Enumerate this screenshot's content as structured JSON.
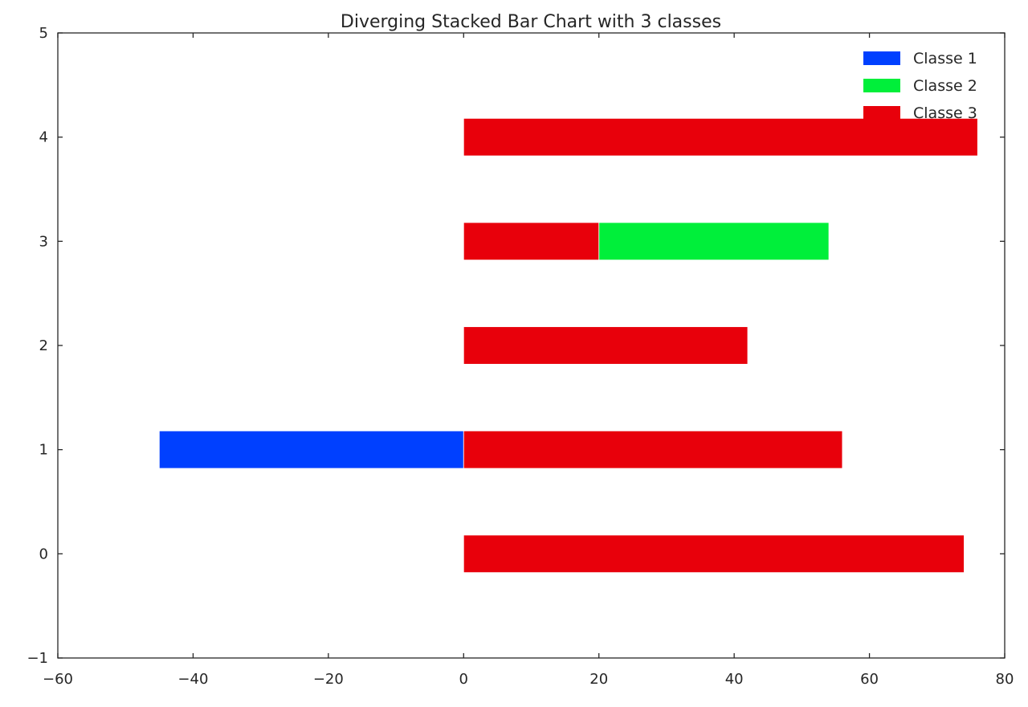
{
  "chart_data": {
    "type": "bar",
    "orientation": "horizontal",
    "stacked": true,
    "diverging": true,
    "title": "Diverging Stacked Bar Chart with 3 classes",
    "xlabel": "",
    "ylabel": "",
    "xlim": [
      -60,
      80
    ],
    "ylim": [
      -1,
      5
    ],
    "xticks": [
      -60,
      -40,
      -20,
      0,
      20,
      40,
      60,
      80
    ],
    "yticks": [
      -1,
      0,
      1,
      2,
      3,
      4,
      5
    ],
    "xtick_labels": [
      "−60",
      "−40",
      "−20",
      "0",
      "20",
      "40",
      "60",
      "80"
    ],
    "ytick_labels": [
      "−1",
      "0",
      "1",
      "2",
      "3",
      "4",
      "5"
    ],
    "categories": [
      0,
      1,
      2,
      3,
      4
    ],
    "bar_height": 0.36,
    "grid": false,
    "legend_position": "top-right",
    "series": [
      {
        "name": "Classe 1",
        "color": "#0040ff",
        "values": [
          0,
          -45,
          0,
          0,
          0
        ]
      },
      {
        "name": "Classe 2",
        "color": "#00ef3a",
        "values": [
          0,
          0,
          0,
          34,
          0
        ],
        "offsets": [
          0,
          0,
          0,
          20,
          0
        ]
      },
      {
        "name": "Classe 3",
        "color": "#e8000b",
        "values": [
          74,
          56,
          42,
          20,
          76
        ],
        "offsets": [
          0,
          0,
          0,
          0,
          0
        ]
      }
    ]
  }
}
